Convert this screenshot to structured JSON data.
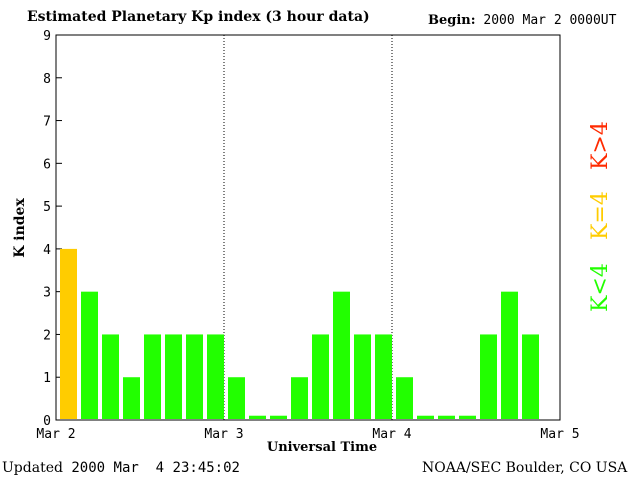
{
  "header": {
    "title": "Estimated Planetary Kp index (3 hour data)",
    "begin_label": "Begin:",
    "begin_value": " 2000 Mar 2 0000UT"
  },
  "footer": {
    "updated_label": "Updated",
    "updated_value": " 2000 Mar  4 23:45:02",
    "source": "NOAA/SEC Boulder, CO USA"
  },
  "legend": {
    "above": "K>4",
    "equal": "K=4",
    "below": "K<4"
  },
  "colors": {
    "below": "#22ff00",
    "equal": "#ffcc00",
    "above": "#ff2a00"
  },
  "chart_data": {
    "type": "bar",
    "xlabel": "Universal Time",
    "ylabel": "K index",
    "ylim": [
      0,
      9
    ],
    "x_ticks": [
      "Mar 2",
      "Mar 3",
      "Mar 4",
      "Mar 5"
    ],
    "y_ticks": [
      "0",
      "1",
      "2",
      "3",
      "4",
      "5",
      "6",
      "7",
      "8",
      "9"
    ],
    "day_separators": "dotted",
    "values": [
      4,
      3,
      2,
      1,
      2,
      2,
      2,
      2,
      1,
      0,
      0,
      1,
      2,
      3,
      2,
      2,
      1,
      0,
      0,
      0,
      2,
      3,
      2
    ]
  }
}
